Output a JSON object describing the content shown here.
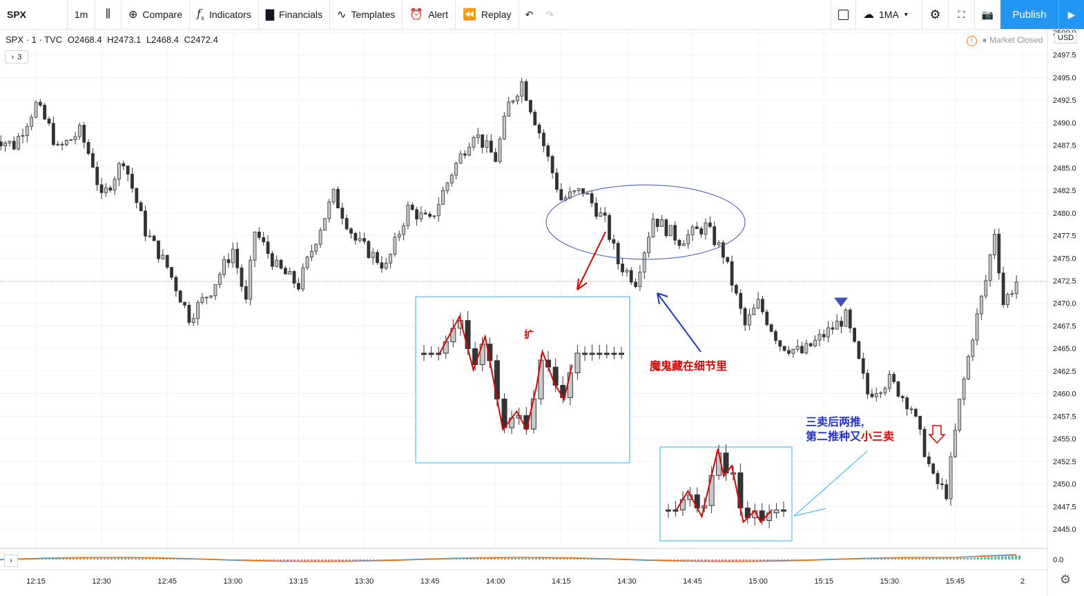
{
  "toolbar": {
    "symbol": "SPX",
    "interval": "1m",
    "compare": "Compare",
    "indicators": "Indicators",
    "financials": "Financials",
    "templates": "Templates",
    "alert": "Alert",
    "replay": "Replay",
    "ma": "1MA",
    "publish": "Publish"
  },
  "legend": {
    "title": "SPX · 1 · TVC",
    "open": "O2468.4",
    "high": "H2473.1",
    "low": "L2468.4",
    "close": "C2472.4",
    "collapsed_count": "3"
  },
  "status": {
    "market": "Market Closed",
    "currency": "USD"
  },
  "annotations": {
    "expand": "扩",
    "devil": "魔鬼藏在细节里",
    "sell_line1": "三卖后两推,",
    "sell_line2a": "第二推种又",
    "sell_line2b": "小三卖"
  },
  "colors": {
    "accent": "#2196f3",
    "candle_down": "#333333",
    "candle_up_fill": "#c8c8c8",
    "annotation_red": "#e00000",
    "annotation_blue": "#2233cc"
  },
  "chart_data": {
    "type": "candlestick",
    "symbol": "SPX",
    "interval": "1m",
    "y_ticks": [
      "2500.0",
      "2497.5",
      "2495.0",
      "2492.5",
      "2490.0",
      "2487.5",
      "2485.0",
      "2482.5",
      "2480.0",
      "2477.5",
      "2475.0",
      "2472.5",
      "2470.0",
      "2467.5",
      "2465.0",
      "2462.5",
      "2460.0",
      "2457.5",
      "2455.0",
      "2452.5",
      "2450.0",
      "2447.5",
      "2445.0"
    ],
    "x_ticks": [
      "12:15",
      "12:30",
      "12:45",
      "13:00",
      "13:15",
      "13:30",
      "13:45",
      "14:00",
      "14:15",
      "14:30",
      "14:45",
      "15:00",
      "15:15",
      "15:30",
      "15:45",
      "2"
    ],
    "oscillator_tick": "0.0",
    "price_line": 2472.4,
    "approx_close_path": [
      {
        "t": "12:05",
        "c": 2488.5
      },
      {
        "t": "12:10",
        "c": 2487.5
      },
      {
        "t": "12:15",
        "c": 2492.0
      },
      {
        "t": "12:18",
        "c": 2489.5
      },
      {
        "t": "12:20",
        "c": 2487.0
      },
      {
        "t": "12:25",
        "c": 2489.0
      },
      {
        "t": "12:28",
        "c": 2485.5
      },
      {
        "t": "12:30",
        "c": 2481.5
      },
      {
        "t": "12:35",
        "c": 2486.0
      },
      {
        "t": "12:40",
        "c": 2478.0
      },
      {
        "t": "12:45",
        "c": 2474.0
      },
      {
        "t": "12:50",
        "c": 2468.5
      },
      {
        "t": "12:55",
        "c": 2471.5
      },
      {
        "t": "13:00",
        "c": 2476.0
      },
      {
        "t": "13:03",
        "c": 2470.0
      },
      {
        "t": "13:05",
        "c": 2478.0
      },
      {
        "t": "13:10",
        "c": 2474.0
      },
      {
        "t": "13:15",
        "c": 2472.0
      },
      {
        "t": "13:20",
        "c": 2478.5
      },
      {
        "t": "13:23",
        "c": 2482.0
      },
      {
        "t": "13:28",
        "c": 2477.0
      },
      {
        "t": "13:35",
        "c": 2474.0
      },
      {
        "t": "13:40",
        "c": 2480.5
      },
      {
        "t": "13:45",
        "c": 2479.0
      },
      {
        "t": "13:50",
        "c": 2484.5
      },
      {
        "t": "13:55",
        "c": 2489.0
      },
      {
        "t": "14:00",
        "c": 2486.0
      },
      {
        "t": "14:03",
        "c": 2492.0
      },
      {
        "t": "14:06",
        "c": 2494.5
      },
      {
        "t": "14:10",
        "c": 2489.0
      },
      {
        "t": "14:15",
        "c": 2481.5
      },
      {
        "t": "14:20",
        "c": 2482.5
      },
      {
        "t": "14:25",
        "c": 2479.0
      },
      {
        "t": "14:28",
        "c": 2474.5
      },
      {
        "t": "14:32",
        "c": 2472.5
      },
      {
        "t": "14:36",
        "c": 2479.5
      },
      {
        "t": "14:42",
        "c": 2477.0
      },
      {
        "t": "14:48",
        "c": 2478.5
      },
      {
        "t": "14:52",
        "c": 2475.5
      },
      {
        "t": "14:57",
        "c": 2467.5
      },
      {
        "t": "15:00",
        "c": 2470.0
      },
      {
        "t": "15:05",
        "c": 2465.5
      },
      {
        "t": "15:10",
        "c": 2464.5
      },
      {
        "t": "15:15",
        "c": 2466.5
      },
      {
        "t": "15:20",
        "c": 2468.5
      },
      {
        "t": "15:25",
        "c": 2460.0
      },
      {
        "t": "15:30",
        "c": 2461.5
      },
      {
        "t": "15:35",
        "c": 2458.5
      },
      {
        "t": "15:40",
        "c": 2450.5
      },
      {
        "t": "15:43",
        "c": 2449.0
      },
      {
        "t": "15:46",
        "c": 2459.0
      },
      {
        "t": "15:49",
        "c": 2466.5
      },
      {
        "t": "15:52",
        "c": 2472.5
      },
      {
        "t": "15:54",
        "c": 2478.0
      },
      {
        "t": "15:56",
        "c": 2470.0
      },
      {
        "t": "15:59",
        "c": 2472.4
      }
    ]
  }
}
